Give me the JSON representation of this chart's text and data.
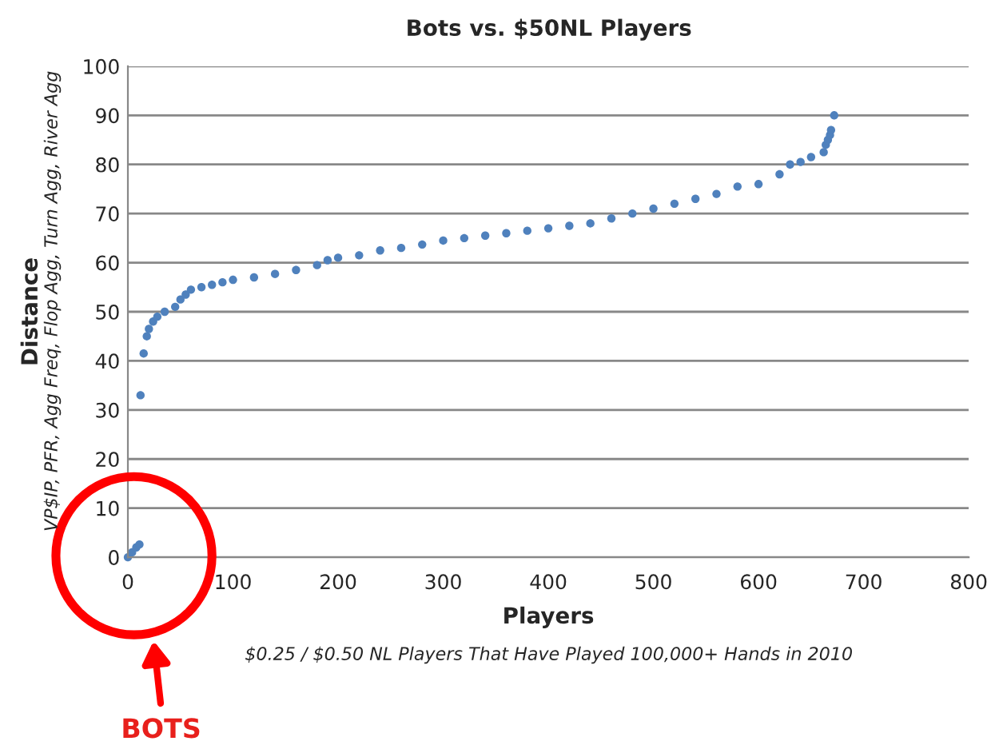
{
  "chart_data": {
    "type": "scatter",
    "title": "Bots vs. $50NL Players",
    "xlabel": "Players",
    "ylabel": "Distance",
    "annotations": [
      "VP$IP, PFR, Agg Freq, Flop Agg, Turn Agg, River Agg",
      "$0.25 / $0.50 NL Players That Have Played 100,000+ Hands in 2010",
      "BOTS"
    ],
    "x": [
      0,
      4,
      8,
      11,
      12,
      15,
      18,
      20,
      24,
      28,
      35,
      45,
      50,
      55,
      60,
      70,
      80,
      90,
      100,
      120,
      140,
      160,
      180,
      190,
      200,
      220,
      240,
      260,
      280,
      300,
      320,
      340,
      360,
      380,
      400,
      420,
      440,
      460,
      480,
      500,
      520,
      540,
      560,
      580,
      600,
      620,
      630,
      640,
      650,
      662,
      664,
      666,
      668,
      669,
      672
    ],
    "values": [
      0,
      1,
      2,
      2.6,
      33,
      41.5,
      45,
      46.5,
      48,
      49,
      50,
      51,
      52.5,
      53.5,
      54.5,
      55,
      55.5,
      56,
      56.5,
      57,
      57.7,
      58.5,
      59.5,
      60.5,
      61,
      61.5,
      62.5,
      63,
      63.7,
      64.5,
      65,
      65.5,
      66,
      66.5,
      67,
      67.5,
      68,
      69,
      70,
      71,
      72,
      73,
      74,
      75.5,
      76,
      78,
      80,
      80.5,
      81.5,
      82.5,
      84,
      85,
      86,
      87,
      90
    ],
    "color": "#4f81bd",
    "marker": "circle",
    "xlim": [
      0,
      800
    ],
    "xticks": [
      0,
      100,
      200,
      300,
      400,
      500,
      600,
      700,
      800
    ],
    "ylim": [
      0,
      100
    ],
    "yticks": [
      0,
      10,
      20,
      30,
      40,
      50,
      60,
      70,
      80,
      90,
      100
    ],
    "grid": "y",
    "legend": false
  }
}
